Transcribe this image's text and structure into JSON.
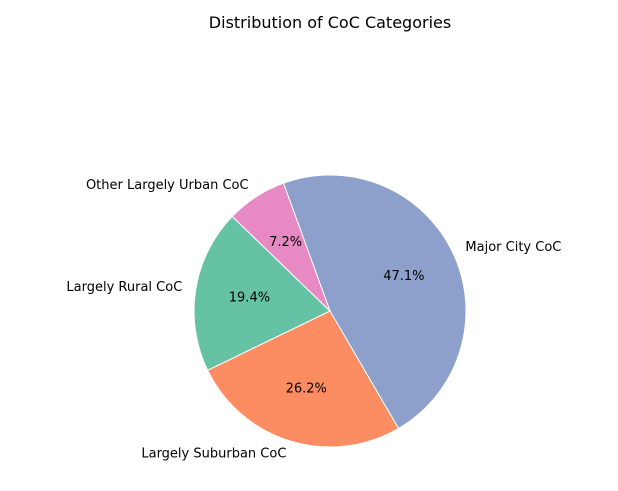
{
  "chart_data": {
    "type": "pie",
    "title": "Distribution of CoC Categories",
    "slices": [
      {
        "label": "Major City CoC",
        "value": 47.1,
        "pct_label": "47.1%",
        "color": "#8da0cb"
      },
      {
        "label": "Largely Suburban CoC",
        "value": 26.2,
        "pct_label": "26.2%",
        "color": "#fc8d62"
      },
      {
        "label": "Largely Rural CoC",
        "value": 19.4,
        "pct_label": "19.4%",
        "color": "#66c2a5"
      },
      {
        "label": "Other Largely Urban CoC",
        "value": 7.2,
        "pct_label": "7.2%",
        "color": "#e78ac3"
      }
    ],
    "start_angle_deg": 110,
    "direction": "clockwise",
    "edge_color": "#ffffff"
  }
}
